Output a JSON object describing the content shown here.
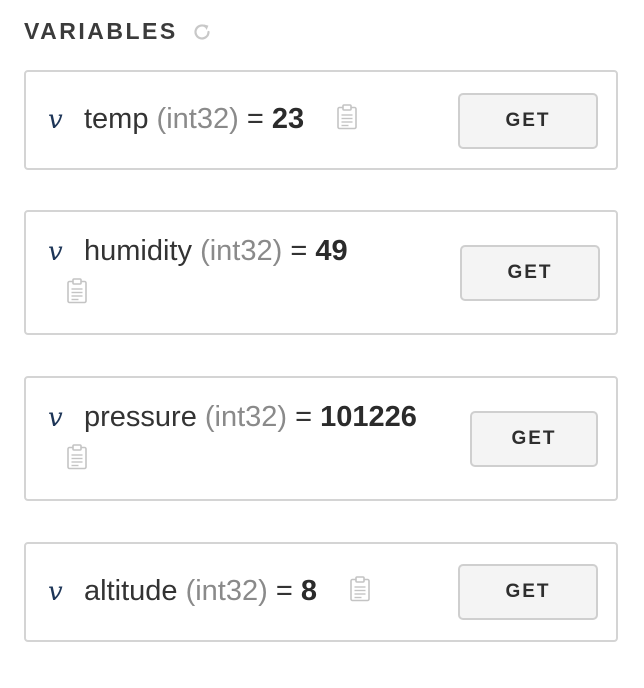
{
  "section": {
    "title": "VARIABLES",
    "refresh_icon": "refresh-icon"
  },
  "variables": [
    {
      "mark": "v",
      "name": "temp",
      "type": "(int32)",
      "equals": "=",
      "value": "23",
      "button_label": "GET",
      "copy_icon": "clipboard-icon"
    },
    {
      "mark": "v",
      "name": "humidity",
      "type": "(int32)",
      "equals": "=",
      "value": "49",
      "button_label": "GET",
      "copy_icon": "clipboard-icon"
    },
    {
      "mark": "v",
      "name": "pressure",
      "type": "(int32)",
      "equals": "=",
      "value": "101226",
      "button_label": "GET",
      "copy_icon": "clipboard-icon"
    },
    {
      "mark": "v",
      "name": "altitude",
      "type": "(int32)",
      "equals": "=",
      "value": "8",
      "button_label": "GET",
      "copy_icon": "clipboard-icon"
    }
  ],
  "colors": {
    "border": "#d4d4d4",
    "button_bg": "#f4f4f4",
    "type_text": "#8a8a8a",
    "mark": "#1d3557"
  }
}
